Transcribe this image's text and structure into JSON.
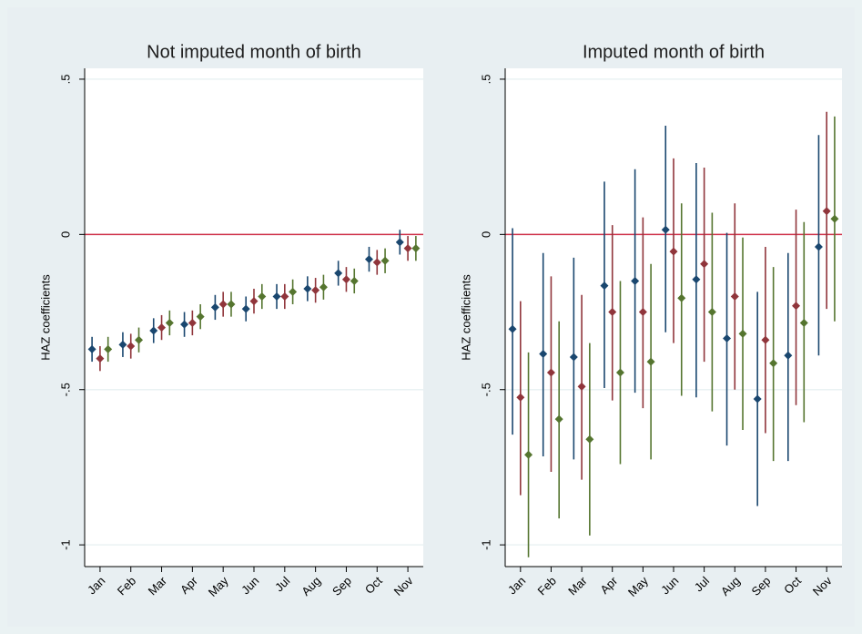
{
  "chart_data": [
    {
      "type": "errorbar",
      "title": "Not imputed month of birth",
      "ylabel": "HAZ coefficients",
      "categories": [
        "Jan",
        "Feb",
        "Mar",
        "Apr",
        "May",
        "Jun",
        "Jul",
        "Aug",
        "Sep",
        "Oct",
        "Nov"
      ],
      "series": [
        {
          "color": "#1a476f",
          "values": [
            -0.37,
            -0.355,
            -0.31,
            -0.29,
            -0.235,
            -0.24,
            -0.2,
            -0.175,
            -0.125,
            -0.08,
            -0.025
          ],
          "ci_low": [
            -0.41,
            -0.395,
            -0.35,
            -0.33,
            -0.275,
            -0.28,
            -0.24,
            -0.215,
            -0.165,
            -0.12,
            -0.065
          ],
          "ci_high": [
            -0.33,
            -0.315,
            -0.27,
            -0.25,
            -0.195,
            -0.2,
            -0.16,
            -0.135,
            -0.085,
            -0.04,
            0.015
          ]
        },
        {
          "color": "#90353b",
          "values": [
            -0.4,
            -0.36,
            -0.3,
            -0.285,
            -0.225,
            -0.215,
            -0.2,
            -0.18,
            -0.145,
            -0.09,
            -0.045
          ],
          "ci_low": [
            -0.44,
            -0.4,
            -0.34,
            -0.325,
            -0.265,
            -0.255,
            -0.24,
            -0.22,
            -0.185,
            -0.13,
            -0.085
          ],
          "ci_high": [
            -0.36,
            -0.32,
            -0.26,
            -0.245,
            -0.185,
            -0.175,
            -0.16,
            -0.14,
            -0.105,
            -0.05,
            -0.005
          ]
        },
        {
          "color": "#55752f",
          "values": [
            -0.37,
            -0.34,
            -0.285,
            -0.265,
            -0.225,
            -0.2,
            -0.185,
            -0.17,
            -0.15,
            -0.085,
            -0.045
          ],
          "ci_low": [
            -0.41,
            -0.38,
            -0.325,
            -0.305,
            -0.265,
            -0.24,
            -0.225,
            -0.21,
            -0.19,
            -0.125,
            -0.085
          ],
          "ci_high": [
            -0.33,
            -0.3,
            -0.245,
            -0.225,
            -0.185,
            -0.16,
            -0.145,
            -0.13,
            -0.11,
            -0.045,
            -0.005
          ]
        }
      ],
      "ylim": [
        -1.07,
        0.535
      ],
      "yticks": [
        {
          "value": 0.5,
          "label": ".5"
        },
        0,
        {
          "value": -0.5,
          "label": "-.5"
        },
        -1
      ],
      "grid": true,
      "hline": 0,
      "hline_color": "#d0344c"
    },
    {
      "type": "errorbar",
      "title": "Imputed month of birth",
      "ylabel": "HAZ coefficients",
      "categories": [
        "Jan",
        "Feb",
        "Mar",
        "Apr",
        "May",
        "Jun",
        "Jul",
        "Aug",
        "Sep",
        "Oct",
        "Nov"
      ],
      "series": [
        {
          "color": "#1a476f",
          "values": [
            -0.305,
            -0.385,
            -0.395,
            -0.165,
            -0.15,
            0.015,
            -0.145,
            -0.335,
            -0.53,
            -0.39,
            -0.04
          ],
          "ci_low": [
            -0.645,
            -0.715,
            -0.725,
            -0.495,
            -0.51,
            -0.315,
            -0.525,
            -0.68,
            -0.875,
            -0.73,
            -0.39
          ],
          "ci_high": [
            0.02,
            -0.06,
            -0.075,
            0.17,
            0.21,
            0.35,
            0.23,
            0.005,
            -0.185,
            -0.06,
            0.32
          ]
        },
        {
          "color": "#90353b",
          "values": [
            -0.525,
            -0.445,
            -0.49,
            -0.25,
            -0.25,
            -0.055,
            -0.095,
            -0.2,
            -0.34,
            -0.23,
            0.075
          ],
          "ci_low": [
            -0.84,
            -0.765,
            -0.79,
            -0.535,
            -0.56,
            -0.35,
            -0.41,
            -0.5,
            -0.64,
            -0.55,
            -0.24
          ],
          "ci_high": [
            -0.215,
            -0.135,
            -0.195,
            0.03,
            0.055,
            0.245,
            0.215,
            0.1,
            -0.04,
            0.08,
            0.395
          ]
        },
        {
          "color": "#55752f",
          "values": [
            -0.71,
            -0.595,
            -0.66,
            -0.445,
            -0.41,
            -0.205,
            -0.25,
            -0.32,
            -0.415,
            -0.285,
            0.05
          ],
          "ci_low": [
            -1.04,
            -0.915,
            -0.97,
            -0.74,
            -0.725,
            -0.52,
            -0.57,
            -0.63,
            -0.73,
            -0.605,
            -0.28
          ],
          "ci_high": [
            -0.38,
            -0.28,
            -0.35,
            -0.15,
            -0.095,
            0.1,
            0.07,
            -0.01,
            -0.105,
            0.04,
            0.38
          ]
        }
      ],
      "ylim": [
        -1.07,
        0.535
      ],
      "yticks": [
        {
          "value": 0.5,
          "label": ".5"
        },
        0,
        {
          "value": -0.5,
          "label": "-.5"
        },
        -1
      ],
      "grid": true,
      "hline": 0,
      "hline_color": "#d0344c"
    }
  ]
}
